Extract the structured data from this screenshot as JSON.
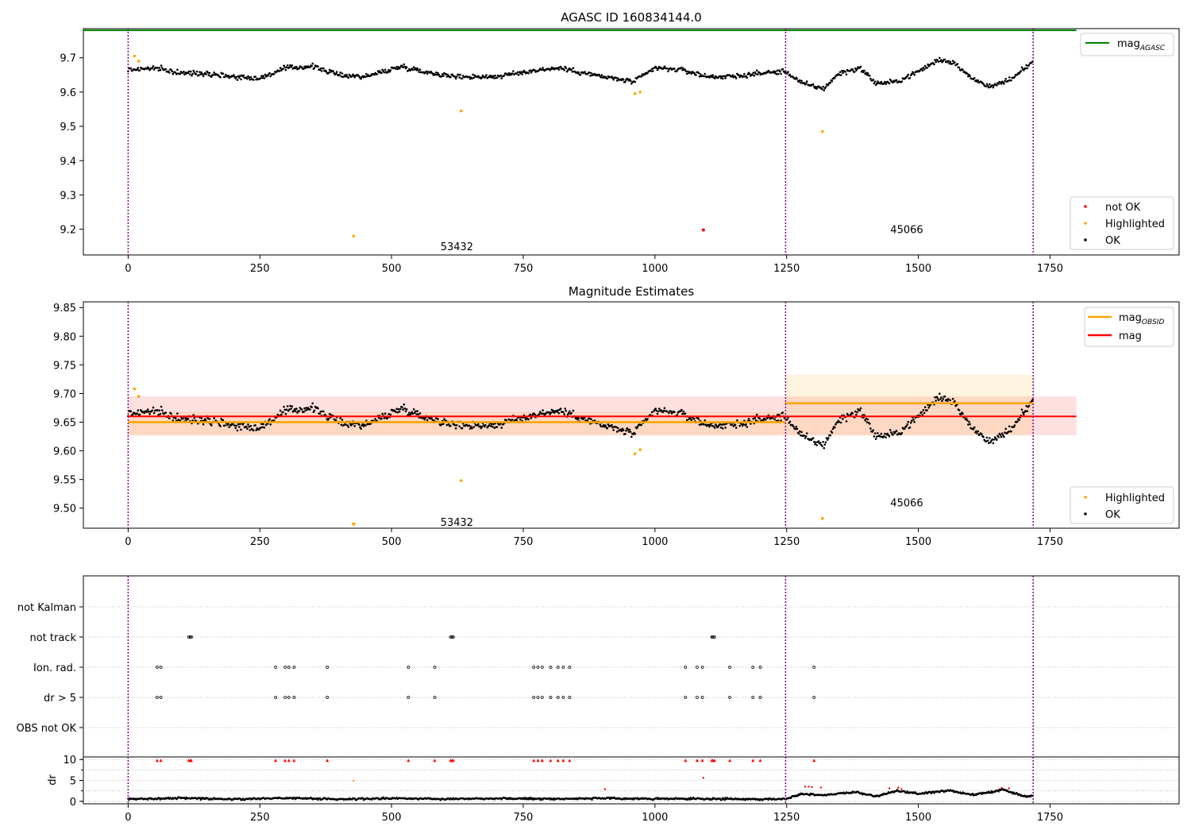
{
  "chart_data": [
    {
      "type": "scatter",
      "title": "AGASC ID 160834144.0",
      "xlabel": "",
      "ylabel": "",
      "xlim": [
        -85,
        1995
      ],
      "ylim": [
        9.125,
        9.785
      ],
      "xticks": [
        0,
        250,
        500,
        750,
        1000,
        1250,
        1500,
        1750
      ],
      "yticks": [
        9.2,
        9.3,
        9.4,
        9.5,
        9.6,
        9.7
      ],
      "grid": false,
      "vlines": [
        0,
        1248,
        1718
      ],
      "hline": {
        "name": "mag_AGASC",
        "value": 9.78,
        "color": "#008000"
      },
      "segment_labels": [
        {
          "text": "53432",
          "x": 624,
          "y": 9.15
        },
        {
          "text": "45066",
          "x": 1478,
          "y": 9.2
        }
      ],
      "trend": [
        [
          0,
          9.665
        ],
        [
          50,
          9.67
        ],
        [
          100,
          9.655
        ],
        [
          150,
          9.655
        ],
        [
          200,
          9.645
        ],
        [
          250,
          9.64
        ],
        [
          300,
          9.67
        ],
        [
          350,
          9.675
        ],
        [
          400,
          9.65
        ],
        [
          450,
          9.645
        ],
        [
          520,
          9.675
        ],
        [
          560,
          9.66
        ],
        [
          620,
          9.645
        ],
        [
          700,
          9.645
        ],
        [
          780,
          9.665
        ],
        [
          820,
          9.67
        ],
        [
          900,
          9.645
        ],
        [
          960,
          9.63
        ],
        [
          1000,
          9.67
        ],
        [
          1050,
          9.665
        ],
        [
          1100,
          9.645
        ],
        [
          1150,
          9.645
        ],
        [
          1200,
          9.655
        ],
        [
          1248,
          9.66
        ],
        [
          1280,
          9.625
        ],
        [
          1320,
          9.61
        ],
        [
          1350,
          9.655
        ],
        [
          1390,
          9.67
        ],
        [
          1420,
          9.625
        ],
        [
          1460,
          9.63
        ],
        [
          1500,
          9.66
        ],
        [
          1540,
          9.695
        ],
        [
          1570,
          9.685
        ],
        [
          1600,
          9.64
        ],
        [
          1640,
          9.615
        ],
        [
          1680,
          9.64
        ],
        [
          1718,
          9.69
        ]
      ],
      "highlighted": [
        [
          12,
          9.705
        ],
        [
          20,
          9.69
        ],
        [
          428,
          9.18
        ],
        [
          632,
          9.545
        ],
        [
          962,
          9.595
        ],
        [
          972,
          9.6
        ],
        [
          1318,
          9.485
        ]
      ],
      "not_ok": [
        [
          1092,
          9.198
        ]
      ],
      "legend_upper": {
        "placement": "upper-right",
        "entries": [
          {
            "name": "mag",
            "sub": "AGASC",
            "color": "#008000"
          }
        ]
      },
      "legend_lower": {
        "placement": "lower-right",
        "entries": [
          {
            "name": "not OK",
            "color": "#ff0000"
          },
          {
            "name": "Highlighted",
            "color": "#ffa500"
          },
          {
            "name": "OK",
            "color": "#000000"
          }
        ]
      }
    },
    {
      "type": "scatter",
      "title": "Magnitude Estimates",
      "xlabel": "",
      "ylabel": "",
      "xlim": [
        -85,
        1995
      ],
      "ylim": [
        9.465,
        9.86
      ],
      "xticks": [
        0,
        250,
        500,
        750,
        1000,
        1250,
        1500,
        1750
      ],
      "yticks": [
        9.5,
        9.55,
        9.6,
        9.65,
        9.7,
        9.75,
        9.8,
        9.85
      ],
      "grid": false,
      "vlines": [
        0,
        1248,
        1718
      ],
      "mag": {
        "value": 9.66,
        "low": 9.627,
        "high": 9.695,
        "x_end": 1800,
        "color": "#ff0000"
      },
      "mag_obsid": [
        {
          "x0": 0,
          "x1": 1248,
          "value": 9.65,
          "low": 9.627,
          "high": 9.668
        },
        {
          "x0": 1248,
          "x1": 1718,
          "value": 9.683,
          "low": 9.627,
          "high": 9.733
        }
      ],
      "segment_labels": [
        {
          "text": "53432",
          "x": 624,
          "y": 9.476
        },
        {
          "text": "45066",
          "x": 1478,
          "y": 9.51
        }
      ],
      "highlighted": [
        [
          12,
          9.708
        ],
        [
          20,
          9.695
        ],
        [
          632,
          9.548
        ],
        [
          962,
          9.595
        ],
        [
          972,
          9.602
        ],
        [
          1318,
          9.482
        ]
      ],
      "highlighted_offscale": [
        [
          428,
          9.465
        ]
      ],
      "legend_upper": {
        "placement": "upper-right",
        "entries": [
          {
            "name": "mag",
            "sub": "OBSID",
            "color": "#ffa500"
          },
          {
            "name": "mag",
            "sub": "",
            "color": "#ff0000"
          }
        ]
      },
      "legend_lower": {
        "placement": "lower-right",
        "entries": [
          {
            "name": "Highlighted",
            "color": "#ffa500"
          },
          {
            "name": "OK",
            "color": "#000000"
          }
        ]
      }
    },
    {
      "type": "scatter",
      "title": "",
      "xlabel": "",
      "ylabel": "",
      "xlim": [
        -85,
        1995
      ],
      "categories": [
        "not Kalman",
        "not track",
        "Ion. rad.",
        "dr > 5",
        "OBS not OK"
      ],
      "grid": true,
      "vlines": [
        0,
        1248,
        1718
      ],
      "flags": {
        "not Kalman": [],
        "not track": [
          115,
          118,
          120,
          612,
          615,
          617,
          1108,
          1110,
          1113
        ],
        "Ion. rad.": [
          55,
          62,
          280,
          298,
          305,
          315,
          378,
          532,
          582,
          770,
          778,
          786,
          802,
          816,
          826,
          838,
          1058,
          1080,
          1090,
          1142,
          1186,
          1200,
          1302
        ],
        "dr > 5": [
          55,
          62,
          280,
          298,
          305,
          315,
          378,
          532,
          582,
          770,
          778,
          786,
          802,
          816,
          826,
          838,
          1058,
          1080,
          1090,
          1142,
          1186,
          1200,
          1302
        ],
        "OBS not OK": []
      }
    },
    {
      "type": "scatter",
      "title": "",
      "xlabel": "",
      "ylabel": "dr",
      "xlim": [
        -85,
        1995
      ],
      "ylim": [
        -0.6,
        10.6
      ],
      "xticks": [
        0,
        250,
        500,
        750,
        1000,
        1250,
        1500,
        1750
      ],
      "yticks": [
        0,
        5,
        10
      ],
      "grid": true,
      "vlines": [
        0,
        1248,
        1718
      ],
      "trend": [
        [
          0,
          0.5
        ],
        [
          100,
          0.8
        ],
        [
          200,
          0.5
        ],
        [
          300,
          0.8
        ],
        [
          400,
          0.5
        ],
        [
          500,
          0.7
        ],
        [
          600,
          0.6
        ],
        [
          700,
          0.7
        ],
        [
          800,
          0.6
        ],
        [
          900,
          0.7
        ],
        [
          1000,
          0.6
        ],
        [
          1100,
          0.6
        ],
        [
          1200,
          0.5
        ],
        [
          1248,
          0.6
        ],
        [
          1280,
          1.8
        ],
        [
          1320,
          1.5
        ],
        [
          1380,
          2.2
        ],
        [
          1420,
          1.2
        ],
        [
          1460,
          2.5
        ],
        [
          1500,
          1.8
        ],
        [
          1560,
          2.6
        ],
        [
          1600,
          1.5
        ],
        [
          1640,
          2.2
        ],
        [
          1660,
          2.8
        ],
        [
          1700,
          1.2
        ],
        [
          1718,
          1.3
        ]
      ],
      "red_points": [
        [
          55,
          9.8
        ],
        [
          62,
          9.8
        ],
        [
          115,
          9.8
        ],
        [
          118,
          9.8
        ],
        [
          120,
          9.8
        ],
        [
          280,
          9.8
        ],
        [
          298,
          9.8
        ],
        [
          305,
          9.8
        ],
        [
          315,
          9.8
        ],
        [
          378,
          9.8
        ],
        [
          532,
          9.8
        ],
        [
          582,
          9.8
        ],
        [
          612,
          9.8
        ],
        [
          615,
          9.8
        ],
        [
          617,
          9.8
        ],
        [
          770,
          9.8
        ],
        [
          778,
          9.8
        ],
        [
          786,
          9.8
        ],
        [
          802,
          9.8
        ],
        [
          816,
          9.8
        ],
        [
          826,
          9.8
        ],
        [
          838,
          9.8
        ],
        [
          1058,
          9.8
        ],
        [
          1080,
          9.8
        ],
        [
          1090,
          9.8
        ],
        [
          1108,
          9.8
        ],
        [
          1110,
          9.8
        ],
        [
          1113,
          9.8
        ],
        [
          1142,
          9.8
        ],
        [
          1186,
          9.8
        ],
        [
          1200,
          9.8
        ],
        [
          1302,
          9.8
        ],
        [
          1092,
          5.6
        ],
        [
          905,
          2.9
        ],
        [
          1285,
          3.5
        ],
        [
          1292,
          3.5
        ],
        [
          1298,
          3.4
        ],
        [
          1315,
          3.3
        ],
        [
          1445,
          3.1
        ],
        [
          1462,
          3.3
        ],
        [
          1468,
          2.9
        ],
        [
          1658,
          3.2
        ],
        [
          1672,
          3.1
        ]
      ],
      "orange_points": [
        [
          428,
          4.9
        ]
      ]
    }
  ]
}
